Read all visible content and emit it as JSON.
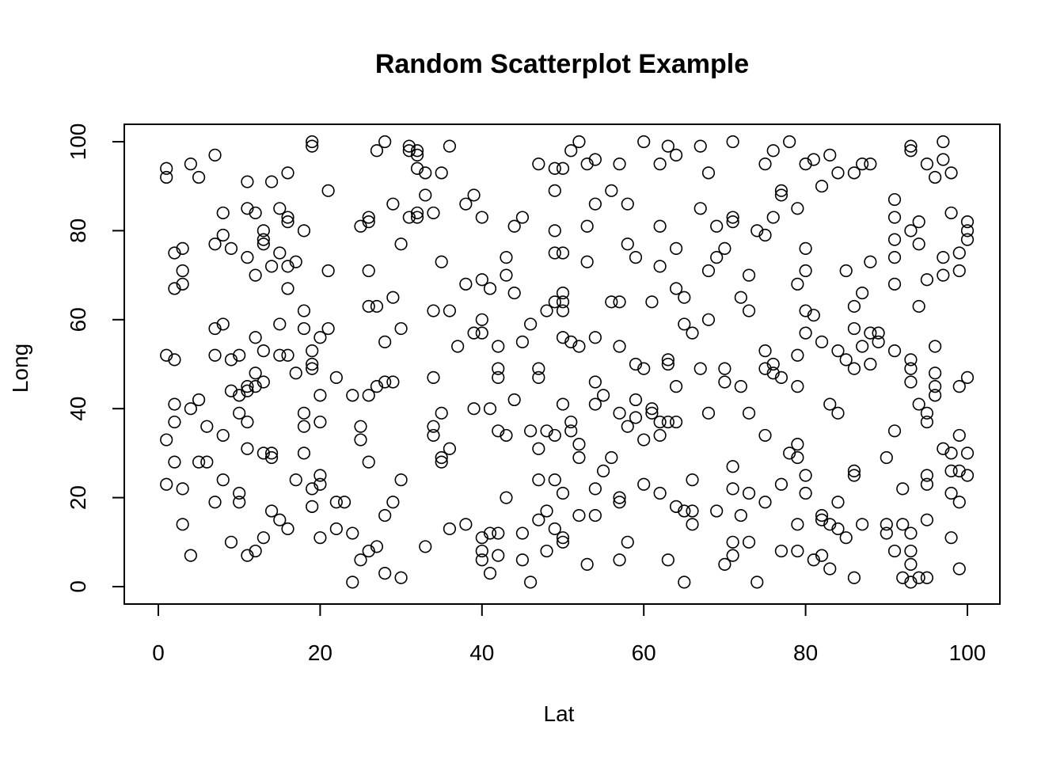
{
  "chart_data": {
    "type": "scatter",
    "title": "Random Scatterplot Example",
    "xlabel": "Lat",
    "ylabel": "Long",
    "xlim": [
      0,
      100
    ],
    "ylim": [
      0,
      100
    ],
    "xticks": [
      "0",
      "20",
      "40",
      "60",
      "80",
      "100"
    ],
    "yticks": [
      "0",
      "20",
      "40",
      "60",
      "80",
      "100"
    ],
    "grid": false,
    "marker": "open-circle",
    "color": "#000000",
    "x": [
      1,
      1,
      1,
      1,
      1,
      2,
      2,
      2,
      2,
      2,
      2,
      3,
      3,
      3,
      3,
      3,
      4,
      4,
      4,
      5,
      5,
      5,
      6,
      6,
      7,
      7,
      7,
      7,
      7,
      8,
      8,
      8,
      8,
      8,
      9,
      9,
      9,
      9,
      10,
      10,
      10,
      10,
      10,
      11,
      11,
      11,
      11,
      11,
      11,
      11,
      11,
      12,
      12,
      12,
      12,
      12,
      12,
      13,
      13,
      13,
      13,
      13,
      13,
      13,
      14,
      14,
      14,
      14,
      14,
      15,
      15,
      15,
      15,
      15,
      16,
      16,
      16,
      16,
      16,
      16,
      16,
      17,
      17,
      17,
      18,
      18,
      18,
      18,
      18,
      18,
      19,
      19,
      19,
      19,
      19,
      19,
      19,
      20,
      20,
      20,
      20,
      20,
      20,
      21,
      21,
      21,
      22,
      22,
      22,
      23,
      24,
      24,
      24,
      25,
      25,
      25,
      25,
      26,
      26,
      26,
      26,
      26,
      26,
      26,
      27,
      27,
      27,
      27,
      28,
      28,
      28,
      28,
      28,
      29,
      29,
      29,
      29,
      30,
      30,
      30,
      30,
      31,
      31,
      31,
      32,
      32,
      32,
      32,
      32,
      33,
      33,
      33,
      34,
      34,
      34,
      34,
      34,
      35,
      35,
      35,
      35,
      35,
      36,
      36,
      36,
      36,
      37,
      38,
      38,
      38,
      39,
      39,
      39,
      40,
      40,
      40,
      40,
      40,
      40,
      40,
      41,
      41,
      41,
      41,
      42,
      42,
      42,
      42,
      42,
      42,
      43,
      43,
      43,
      43,
      44,
      44,
      44,
      45,
      45,
      45,
      45,
      46,
      46,
      46,
      47,
      47,
      47,
      47,
      47,
      47,
      48,
      48,
      48,
      48,
      49,
      49,
      49,
      49,
      49,
      49,
      49,
      49,
      50,
      50,
      50,
      50,
      50,
      50,
      50,
      50,
      50,
      50,
      51,
      51,
      51,
      51,
      52,
      52,
      52,
      52,
      52,
      53,
      53,
      53,
      53,
      54,
      54,
      54,
      54,
      54,
      54,
      54,
      55,
      55,
      56,
      56,
      56,
      57,
      57,
      57,
      57,
      57,
      57,
      57,
      58,
      58,
      58,
      58,
      59,
      59,
      59,
      59,
      60,
      60,
      60,
      60,
      61,
      61,
      61,
      62,
      62,
      62,
      62,
      62,
      62,
      63,
      63,
      63,
      63,
      63,
      64,
      64,
      64,
      64,
      64,
      64,
      65,
      65,
      65,
      65,
      66,
      66,
      66,
      66,
      67,
      67,
      67,
      68,
      68,
      68,
      68,
      69,
      69,
      69,
      70,
      70,
      70,
      70,
      71,
      71,
      71,
      71,
      71,
      71,
      71,
      72,
      72,
      72,
      73,
      73,
      73,
      73,
      73,
      74,
      74,
      75,
      75,
      75,
      75,
      75,
      75,
      76,
      76,
      76,
      76,
      77,
      77,
      77,
      77,
      77,
      78,
      78,
      79,
      79,
      79,
      79,
      79,
      79,
      79,
      79,
      80,
      80,
      80,
      80,
      80,
      80,
      80,
      81,
      81,
      81,
      82,
      82,
      82,
      82,
      82,
      83,
      83,
      83,
      83,
      84,
      84,
      84,
      84,
      84,
      85,
      85,
      85,
      86,
      86,
      86,
      86,
      86,
      86,
      86,
      87,
      87,
      87,
      87,
      88,
      88,
      88,
      88,
      89,
      89,
      90,
      90,
      90,
      91,
      91,
      91,
      91,
      91,
      91,
      91,
      91,
      92,
      92,
      92,
      93,
      93,
      93,
      93,
      93,
      93,
      93,
      93,
      93,
      93,
      94,
      94,
      94,
      94,
      94,
      95,
      95,
      95,
      95,
      95,
      95,
      95,
      95,
      96,
      96,
      96,
      96,
      96,
      97,
      97,
      97,
      97,
      97,
      98,
      98,
      98,
      98,
      98,
      98,
      99,
      99,
      99,
      99,
      99,
      99,
      99,
      100,
      100,
      100,
      100,
      100,
      100
    ],
    "y": [
      94,
      92,
      52,
      33,
      23,
      75,
      67,
      51,
      41,
      37,
      28,
      14,
      76,
      71,
      68,
      22,
      7,
      95,
      40,
      28,
      92,
      42,
      36,
      28,
      19,
      97,
      77,
      58,
      52,
      34,
      84,
      79,
      59,
      24,
      10,
      76,
      51,
      44,
      43,
      52,
      39,
      21,
      19,
      7,
      91,
      85,
      74,
      45,
      44,
      37,
      31,
      8,
      84,
      70,
      56,
      48,
      45,
      11,
      80,
      78,
      77,
      53,
      46,
      30,
      29,
      91,
      72,
      30,
      17,
      15,
      85,
      75,
      59,
      52,
      13,
      93,
      83,
      82,
      72,
      67,
      52,
      24,
      73,
      48,
      36,
      80,
      62,
      58,
      39,
      30,
      18,
      100,
      99,
      53,
      50,
      49,
      22,
      56,
      43,
      37,
      25,
      23,
      11,
      89,
      71,
      58,
      47,
      19,
      13,
      19,
      43,
      12,
      1,
      81,
      36,
      33,
      6,
      83,
      82,
      71,
      63,
      43,
      28,
      8,
      98,
      63,
      45,
      9,
      100,
      55,
      46,
      16,
      3,
      86,
      65,
      46,
      19,
      77,
      58,
      24,
      2,
      99,
      98,
      83,
      98,
      97,
      94,
      84,
      83,
      93,
      88,
      9,
      84,
      62,
      47,
      36,
      34,
      93,
      73,
      39,
      29,
      28,
      99,
      62,
      31,
      13,
      54,
      86,
      68,
      14,
      88,
      57,
      40,
      83,
      69,
      60,
      57,
      11,
      8,
      6,
      67,
      40,
      12,
      3,
      54,
      49,
      47,
      35,
      12,
      7,
      74,
      70,
      34,
      20,
      81,
      66,
      42,
      83,
      55,
      6,
      12,
      59,
      35,
      1,
      95,
      49,
      47,
      31,
      24,
      15,
      62,
      35,
      17,
      8,
      94,
      89,
      80,
      75,
      64,
      34,
      24,
      13,
      94,
      75,
      66,
      64,
      62,
      56,
      41,
      21,
      11,
      10,
      98,
      55,
      37,
      35,
      100,
      54,
      32,
      29,
      16,
      95,
      81,
      73,
      5,
      96,
      86,
      56,
      46,
      41,
      22,
      16,
      43,
      26,
      89,
      64,
      29,
      95,
      64,
      54,
      39,
      20,
      19,
      6,
      86,
      77,
      36,
      10,
      74,
      50,
      42,
      38,
      100,
      49,
      33,
      23,
      64,
      40,
      39,
      95,
      81,
      72,
      37,
      34,
      21,
      99,
      51,
      50,
      37,
      6,
      97,
      76,
      67,
      45,
      37,
      18,
      65,
      59,
      17,
      1,
      57,
      24,
      17,
      14,
      99,
      85,
      49,
      93,
      71,
      60,
      39,
      81,
      74,
      17,
      76,
      49,
      46,
      5,
      100,
      83,
      82,
      27,
      22,
      10,
      7,
      65,
      45,
      16,
      70,
      62,
      39,
      21,
      10,
      80,
      1,
      95,
      79,
      53,
      49,
      34,
      19,
      98,
      83,
      50,
      48,
      89,
      88,
      47,
      23,
      8,
      100,
      30,
      85,
      68,
      52,
      45,
      32,
      29,
      14,
      8,
      95,
      76,
      71,
      62,
      57,
      25,
      21,
      96,
      61,
      6,
      90,
      55,
      16,
      15,
      7,
      97,
      41,
      14,
      4,
      93,
      53,
      39,
      19,
      13,
      71,
      51,
      11,
      93,
      63,
      58,
      49,
      26,
      25,
      2,
      95,
      66,
      54,
      14,
      95,
      73,
      57,
      50,
      57,
      55,
      29,
      14,
      12,
      87,
      83,
      78,
      74,
      68,
      53,
      35,
      8,
      22,
      14,
      2,
      99,
      98,
      80,
      51,
      49,
      46,
      8,
      5,
      1,
      12,
      82,
      77,
      63,
      41,
      2,
      95,
      69,
      39,
      37,
      25,
      23,
      15,
      2,
      92,
      54,
      48,
      45,
      43,
      100,
      96,
      74,
      70,
      31,
      93,
      84,
      30,
      26,
      21,
      11,
      75,
      71,
      45,
      34,
      26,
      19,
      4,
      82,
      80,
      78,
      47,
      30,
      25
    ]
  }
}
